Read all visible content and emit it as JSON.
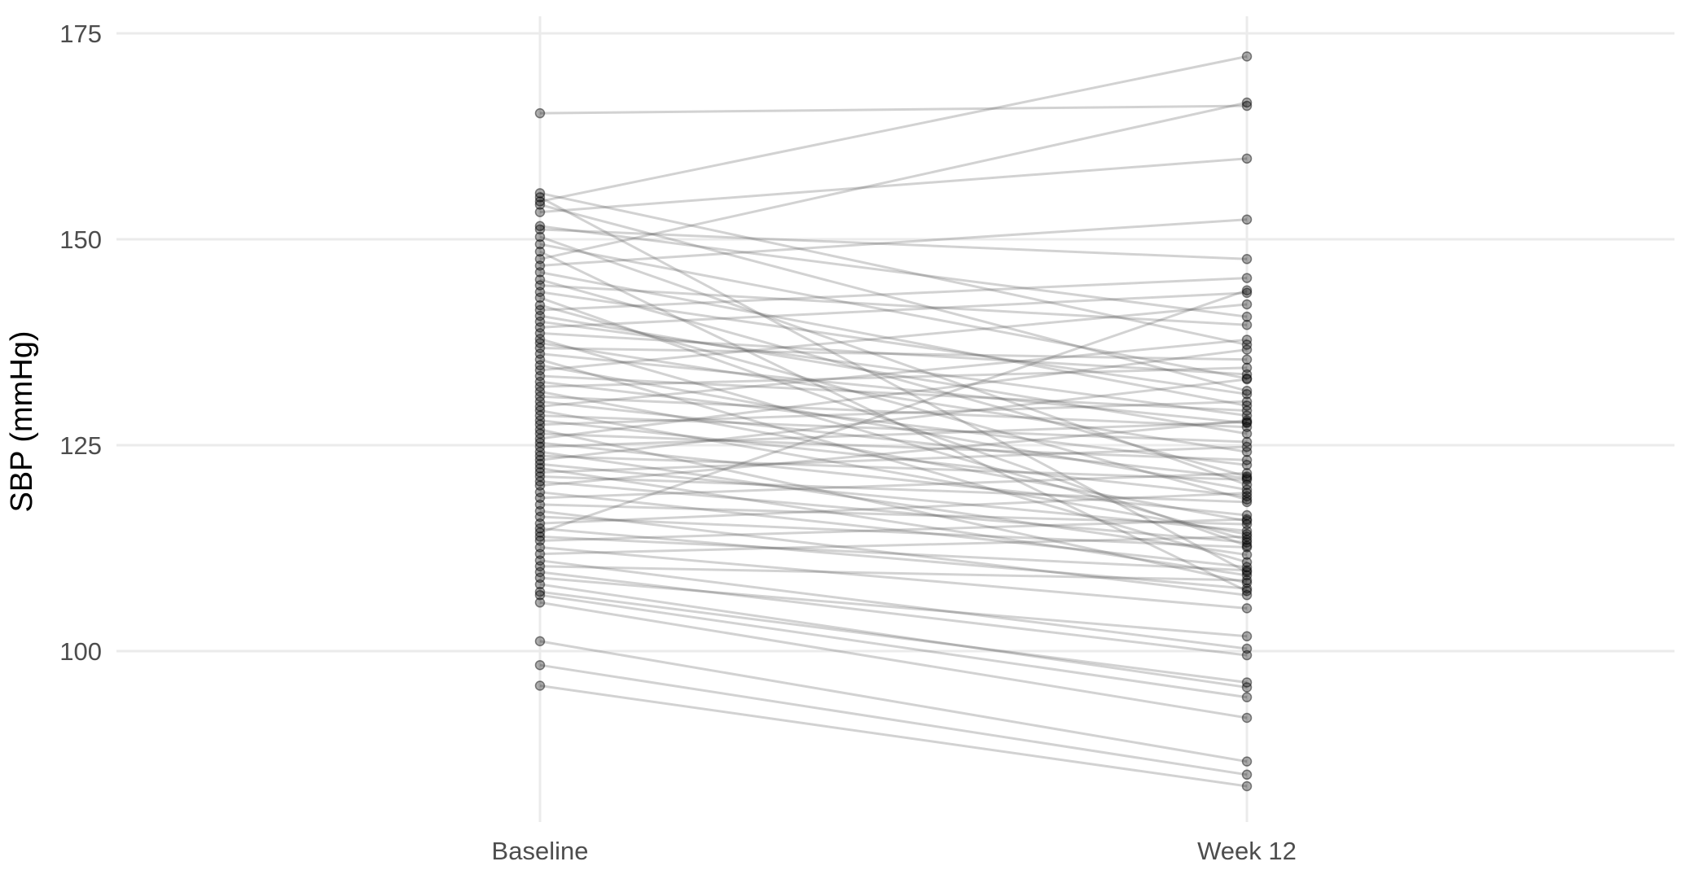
{
  "chart_data": {
    "type": "line",
    "title": "",
    "xlabel": "",
    "ylabel": "SBP (mmHg)",
    "categories": [
      "Baseline",
      "Week 12"
    ],
    "ylim": [
      82,
      176
    ],
    "yticks": [
      100,
      125,
      150,
      175
    ],
    "grid": true,
    "legend": "none",
    "colors": {
      "line": "#4d4d4d",
      "point": "#000000",
      "grid": "#ebebeb"
    },
    "pairs": [
      [
        165.3,
        166.2
      ],
      [
        155.6,
        137.2
      ],
      [
        155.1,
        109.6
      ],
      [
        154.6,
        172.2
      ],
      [
        154.2,
        131.6
      ],
      [
        153.3,
        159.8
      ],
      [
        151.6,
        140.6
      ],
      [
        151.2,
        147.6
      ],
      [
        150.3,
        120.2
      ],
      [
        149.4,
        133.1
      ],
      [
        148.5,
        107.3
      ],
      [
        147.6,
        166.6
      ],
      [
        146.8,
        152.4
      ],
      [
        146.0,
        129.8
      ],
      [
        145.1,
        121.2
      ],
      [
        144.4,
        139.6
      ],
      [
        143.6,
        131.2
      ],
      [
        142.9,
        112.8
      ],
      [
        142.0,
        118.4
      ],
      [
        141.4,
        145.3
      ],
      [
        140.7,
        126.4
      ],
      [
        140.0,
        128.6
      ],
      [
        139.3,
        143.5
      ],
      [
        138.6,
        133.6
      ],
      [
        137.9,
        113.5
      ],
      [
        137.4,
        124.2
      ],
      [
        136.8,
        135.4
      ],
      [
        136.1,
        127.7
      ],
      [
        135.4,
        110.8
      ],
      [
        134.7,
        119.6
      ],
      [
        134.1,
        142.1
      ],
      [
        133.4,
        129.2
      ],
      [
        132.7,
        122.6
      ],
      [
        132.1,
        134.4
      ],
      [
        131.5,
        115.8
      ],
      [
        130.9,
        127.2
      ],
      [
        130.3,
        121.0
      ],
      [
        129.7,
        137.8
      ],
      [
        129.2,
        114.2
      ],
      [
        128.6,
        125.4
      ],
      [
        128.0,
        118.8
      ],
      [
        127.5,
        130.3
      ],
      [
        126.9,
        108.3
      ],
      [
        126.4,
        123.2
      ],
      [
        125.8,
        136.6
      ],
      [
        125.3,
        116.5
      ],
      [
        124.8,
        127.8
      ],
      [
        124.2,
        111.7
      ],
      [
        123.7,
        120.8
      ],
      [
        123.2,
        133.0
      ],
      [
        122.7,
        114.6
      ],
      [
        122.2,
        109.2
      ],
      [
        121.7,
        124.8
      ],
      [
        121.2,
        118.1
      ],
      [
        120.6,
        113.2
      ],
      [
        120.1,
        128.0
      ],
      [
        119.3,
        110.2
      ],
      [
        118.6,
        121.6
      ],
      [
        117.8,
        115.4
      ],
      [
        117.0,
        106.8
      ],
      [
        116.3,
        112.6
      ],
      [
        115.5,
        119.2
      ],
      [
        114.9,
        107.6
      ],
      [
        114.4,
        143.8
      ],
      [
        113.9,
        109.8
      ],
      [
        113.4,
        116.0
      ],
      [
        112.6,
        105.2
      ],
      [
        111.8,
        113.9
      ],
      [
        111.0,
        100.3
      ],
      [
        110.3,
        108.6
      ],
      [
        109.6,
        99.5
      ],
      [
        108.9,
        101.8
      ],
      [
        108.1,
        95.6
      ],
      [
        107.2,
        96.2
      ],
      [
        106.8,
        94.4
      ],
      [
        105.9,
        91.9
      ],
      [
        101.2,
        86.6
      ],
      [
        98.3,
        85.0
      ],
      [
        95.8,
        83.6
      ]
    ]
  }
}
